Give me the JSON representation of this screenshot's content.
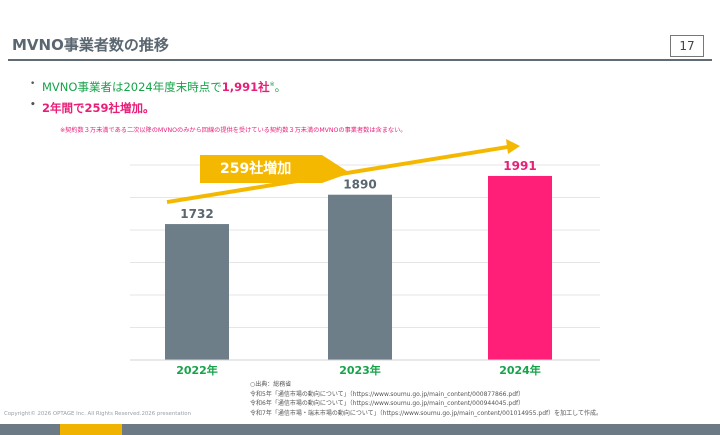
{
  "header": {
    "title": "MVNO事業者数の推移",
    "page_number": "17"
  },
  "bullets": [
    {
      "prefix": "MVNO事業者は2024年度末時点で",
      "highlight": "1,991社",
      "sup": "※",
      "suffix": "。"
    },
    {
      "text": "2年間で259社増加。"
    }
  ],
  "note": "※契約数３万未満である二次以降のMVNOのみから回線の提供を受けている契約数３万未満のMVNOの事業者数は含まない。",
  "chart_data": {
    "type": "bar",
    "categories": [
      "2022年",
      "2023年",
      "2024年"
    ],
    "values": [
      1732,
      1890,
      1991
    ],
    "value_labels": [
      "1732",
      "1890",
      "1991"
    ],
    "ylim": [
      1000,
      2050
    ],
    "grid": true,
    "bar_colors": [
      "#6e7e88",
      "#6e7e88",
      "#ff1f78"
    ],
    "annotation": "259社増加",
    "title": "",
    "xlabel": "",
    "ylabel": ""
  },
  "colors": {
    "arrow": "#f5b800",
    "axis_text": "#16a34a",
    "highlight": "#e91e78"
  },
  "source_lines": [
    "○出典：総務省",
    "令和5年「通信市場の動向について」（https://www.soumu.go.jp/main_content/000877866.pdf）",
    "令和6年「通信市場の動向について」（https://www.soumu.go.jp/main_content/000944045.pdf）",
    "令和7年「通信市場・端末市場の動向について」（https://www.soumu.go.jp/main_content/001014955.pdf）を加工して作成。"
  ],
  "copyright": "Copyright© 2026 OPTAGE Inc. All Rights Reserved.2026 presentation"
}
